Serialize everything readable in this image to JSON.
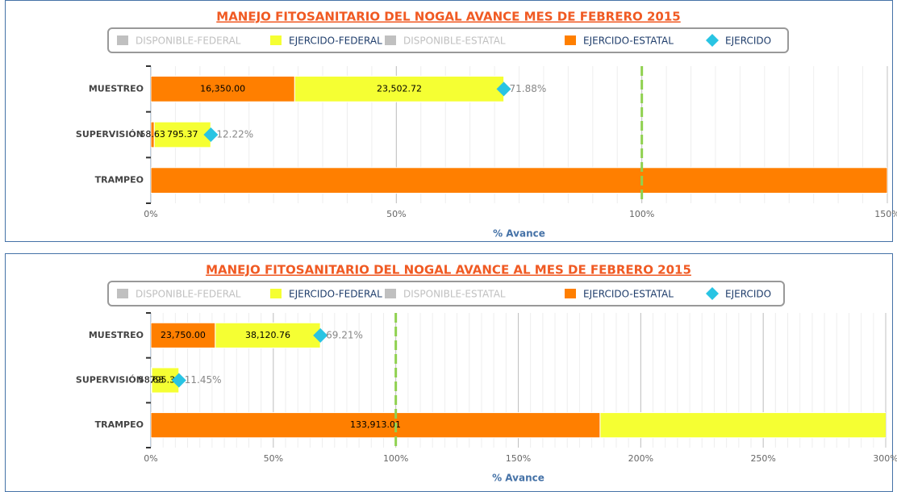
{
  "chart_data": [
    {
      "type": "bar",
      "title": "MANEJO FITOSANITARIO DEL NOGAL AVANCE MES DE FEBRERO 2015",
      "categories": [
        "MUESTREO",
        "SUPERVISIÓN",
        "TRAMPEO"
      ],
      "series": [
        {
          "name": "DISPONIBLE-FEDERAL",
          "color": "#c0c0c0",
          "visible": false,
          "values": [
            null,
            null,
            null
          ]
        },
        {
          "name": "EJERCIDO-FEDERAL",
          "color": "#f5ff33",
          "visible": true,
          "values": [
            42.6,
            11.5,
            null
          ],
          "labels": [
            "23,502.72",
            "795.37",
            null
          ]
        },
        {
          "name": "DISPONIBLE-ESTATAL",
          "color": "#c0c0c0",
          "visible": false,
          "values": [
            null,
            null,
            null
          ]
        },
        {
          "name": "EJERCIDO-ESTATAL",
          "color": "#ff7f00",
          "visible": true,
          "values": [
            29.3,
            0.7,
            150
          ],
          "labels": [
            "16,350.00",
            "58.63",
            null
          ]
        },
        {
          "name": "EJERCIDO",
          "color": "#29c4e3",
          "visible": true,
          "marker": "diamond",
          "values": [
            71.88,
            12.22,
            null
          ],
          "value_labels": [
            "71.88%",
            "12.22%",
            null
          ]
        }
      ],
      "xlabel": "% Avance",
      "xlim": [
        0,
        150
      ],
      "xticks": [
        {
          "value": 0,
          "label": "0%"
        },
        {
          "value": 50,
          "label": "50%"
        },
        {
          "value": 100,
          "label": "100%"
        },
        {
          "value": 150,
          "label": "150%"
        }
      ],
      "minor_grid_interval": 5,
      "plot_line": {
        "value": 100,
        "color": "#8fd14f"
      },
      "grid": true
    },
    {
      "type": "bar",
      "title": "MANEJO FITOSANITARIO DEL NOGAL AVANCE AL MES DE FEBRERO 2015",
      "categories": [
        "MUESTREO",
        "SUPERVISIÓN",
        "TRAMPEO"
      ],
      "series": [
        {
          "name": "DISPONIBLE-FEDERAL",
          "color": "#c0c0c0",
          "visible": false,
          "values": [
            null,
            null,
            null
          ]
        },
        {
          "name": "EJERCIDO-FEDERAL",
          "color": "#f5ff33",
          "visible": true,
          "values": [
            42.9,
            11.1,
            120
          ],
          "labels": [
            "38,120.76",
            "795.37",
            null
          ]
        },
        {
          "name": "DISPONIBLE-ESTATAL",
          "color": "#c0c0c0",
          "visible": false,
          "values": [
            null,
            null,
            null
          ]
        },
        {
          "name": "EJERCIDO-ESTATAL",
          "color": "#ff7f00",
          "visible": true,
          "values": [
            26.3,
            0.35,
            183.4
          ],
          "labels": [
            "23,750.00",
            "58.63",
            "133,913.01"
          ]
        },
        {
          "name": "EJERCIDO",
          "color": "#29c4e3",
          "visible": true,
          "marker": "diamond",
          "values": [
            69.21,
            11.45,
            null
          ],
          "value_labels": [
            "69.21%",
            "11.45%",
            null
          ]
        }
      ],
      "xlabel": "% Avance",
      "xlim": [
        0,
        300
      ],
      "xticks": [
        {
          "value": 0,
          "label": "0%"
        },
        {
          "value": 50,
          "label": "50%"
        },
        {
          "value": 100,
          "label": "100%"
        },
        {
          "value": 150,
          "label": "150%"
        },
        {
          "value": 200,
          "label": "200%"
        },
        {
          "value": 250,
          "label": "250%"
        },
        {
          "value": 300,
          "label": "300%"
        }
      ],
      "minor_grid_interval": 5,
      "plot_line": {
        "value": 100,
        "color": "#8fd14f"
      },
      "grid": true
    }
  ]
}
